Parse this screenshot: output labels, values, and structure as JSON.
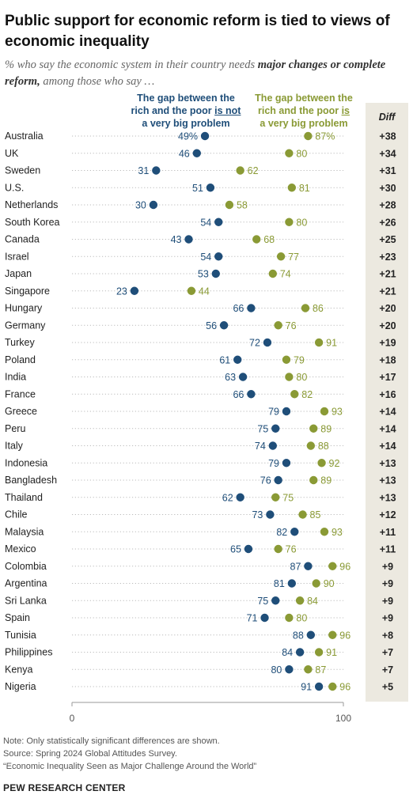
{
  "title": "Public support for economic reform is tied to views of economic inequality",
  "subtitle_pre": "% who say the economic system in their country needs ",
  "subtitle_bold": "major changes or complete reform,",
  "subtitle_post": " among those who say …",
  "legend": {
    "blue_line1": "The gap between the",
    "blue_line2_pre": "rich and the poor ",
    "blue_line2_u": "is not",
    "blue_line3": "a very big problem",
    "green_line1": "The gap between the",
    "green_line2_pre": "rich and the poor ",
    "green_line2_u": "is",
    "green_line3": "a very big problem"
  },
  "diff_title": "Diff",
  "colors": {
    "blue": "#1f4e79",
    "green": "#8a9a35",
    "dots": "#bbbbbb",
    "panel": "#ece9e0"
  },
  "chart_data": {
    "type": "scatter",
    "xlim": [
      0,
      100
    ],
    "x_ticks": [
      "0",
      "100"
    ],
    "series": [
      {
        "name": "The gap between the rich and the poor is not a very big problem",
        "color": "#1f4e79"
      },
      {
        "name": "The gap between the rich and the poor is a very big problem",
        "color": "#8a9a35"
      }
    ],
    "rows": [
      {
        "country": "Australia",
        "not_big": 49,
        "not_big_label": "49%",
        "big": 87,
        "big_label": "87%",
        "diff": "+38"
      },
      {
        "country": "UK",
        "not_big": 46,
        "not_big_label": "46",
        "big": 80,
        "big_label": "80",
        "diff": "+34"
      },
      {
        "country": "Sweden",
        "not_big": 31,
        "not_big_label": "31",
        "big": 62,
        "big_label": "62",
        "diff": "+31"
      },
      {
        "country": "U.S.",
        "not_big": 51,
        "not_big_label": "51",
        "big": 81,
        "big_label": "81",
        "diff": "+30"
      },
      {
        "country": "Netherlands",
        "not_big": 30,
        "not_big_label": "30",
        "big": 58,
        "big_label": "58",
        "diff": "+28"
      },
      {
        "country": "South Korea",
        "not_big": 54,
        "not_big_label": "54",
        "big": 80,
        "big_label": "80",
        "diff": "+26"
      },
      {
        "country": "Canada",
        "not_big": 43,
        "not_big_label": "43",
        "big": 68,
        "big_label": "68",
        "diff": "+25"
      },
      {
        "country": "Israel",
        "not_big": 54,
        "not_big_label": "54",
        "big": 77,
        "big_label": "77",
        "diff": "+23"
      },
      {
        "country": "Japan",
        "not_big": 53,
        "not_big_label": "53",
        "big": 74,
        "big_label": "74",
        "diff": "+21"
      },
      {
        "country": "Singapore",
        "not_big": 23,
        "not_big_label": "23",
        "big": 44,
        "big_label": "44",
        "diff": "+21"
      },
      {
        "country": "Hungary",
        "not_big": 66,
        "not_big_label": "66",
        "big": 86,
        "big_label": "86",
        "diff": "+20"
      },
      {
        "country": "Germany",
        "not_big": 56,
        "not_big_label": "56",
        "big": 76,
        "big_label": "76",
        "diff": "+20"
      },
      {
        "country": "Turkey",
        "not_big": 72,
        "not_big_label": "72",
        "big": 91,
        "big_label": "91",
        "diff": "+19"
      },
      {
        "country": "Poland",
        "not_big": 61,
        "not_big_label": "61",
        "big": 79,
        "big_label": "79",
        "diff": "+18"
      },
      {
        "country": "India",
        "not_big": 63,
        "not_big_label": "63",
        "big": 80,
        "big_label": "80",
        "diff": "+17"
      },
      {
        "country": "France",
        "not_big": 66,
        "not_big_label": "66",
        "big": 82,
        "big_label": "82",
        "diff": "+16"
      },
      {
        "country": "Greece",
        "not_big": 79,
        "not_big_label": "79",
        "big": 93,
        "big_label": "93",
        "diff": "+14"
      },
      {
        "country": "Peru",
        "not_big": 75,
        "not_big_label": "75",
        "big": 89,
        "big_label": "89",
        "diff": "+14"
      },
      {
        "country": "Italy",
        "not_big": 74,
        "not_big_label": "74",
        "big": 88,
        "big_label": "88",
        "diff": "+14"
      },
      {
        "country": "Indonesia",
        "not_big": 79,
        "not_big_label": "79",
        "big": 92,
        "big_label": "92",
        "diff": "+13"
      },
      {
        "country": "Bangladesh",
        "not_big": 76,
        "not_big_label": "76",
        "big": 89,
        "big_label": "89",
        "diff": "+13"
      },
      {
        "country": "Thailand",
        "not_big": 62,
        "not_big_label": "62",
        "big": 75,
        "big_label": "75",
        "diff": "+13"
      },
      {
        "country": "Chile",
        "not_big": 73,
        "not_big_label": "73",
        "big": 85,
        "big_label": "85",
        "diff": "+12"
      },
      {
        "country": "Malaysia",
        "not_big": 82,
        "not_big_label": "82",
        "big": 93,
        "big_label": "93",
        "diff": "+11"
      },
      {
        "country": "Mexico",
        "not_big": 65,
        "not_big_label": "65",
        "big": 76,
        "big_label": "76",
        "diff": "+11"
      },
      {
        "country": "Colombia",
        "not_big": 87,
        "not_big_label": "87",
        "big": 96,
        "big_label": "96",
        "diff": "+9"
      },
      {
        "country": "Argentina",
        "not_big": 81,
        "not_big_label": "81",
        "big": 90,
        "big_label": "90",
        "diff": "+9"
      },
      {
        "country": "Sri Lanka",
        "not_big": 75,
        "not_big_label": "75",
        "big": 84,
        "big_label": "84",
        "diff": "+9"
      },
      {
        "country": "Spain",
        "not_big": 71,
        "not_big_label": "71",
        "big": 80,
        "big_label": "80",
        "diff": "+9"
      },
      {
        "country": "Tunisia",
        "not_big": 88,
        "not_big_label": "88",
        "big": 96,
        "big_label": "96",
        "diff": "+8"
      },
      {
        "country": "Philippines",
        "not_big": 84,
        "not_big_label": "84",
        "big": 91,
        "big_label": "91",
        "diff": "+7"
      },
      {
        "country": "Kenya",
        "not_big": 80,
        "not_big_label": "80",
        "big": 87,
        "big_label": "87",
        "diff": "+7"
      },
      {
        "country": "Nigeria",
        "not_big": 91,
        "not_big_label": "91",
        "big": 96,
        "big_label": "96",
        "diff": "+5"
      }
    ]
  },
  "footer": {
    "note": "Note: Only statistically significant differences are shown.",
    "source": "Source: Spring 2024 Global Attitudes Survey.",
    "report": "“Economic Inequality Seen as Major Challenge Around the World”"
  },
  "brand": "PEW RESEARCH CENTER"
}
